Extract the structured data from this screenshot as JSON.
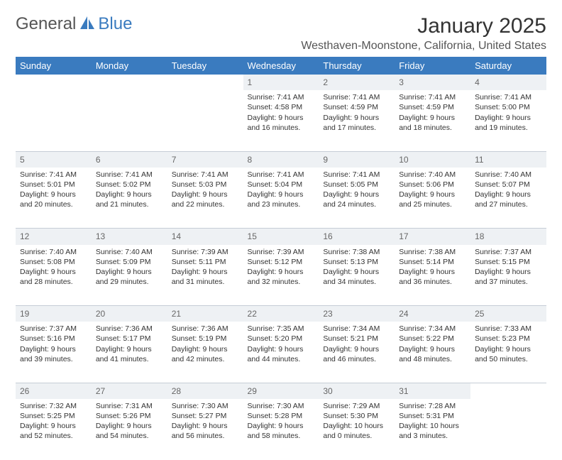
{
  "brand": {
    "part1": "General",
    "part2": "Blue",
    "icon_color": "#3a7bbf"
  },
  "title": "January 2025",
  "location": "Westhaven-Moonstone, California, United States",
  "colors": {
    "header_bg": "#3a7bbf",
    "header_text": "#ffffff",
    "daynum_bg": "#eef1f4",
    "daynum_text": "#666666",
    "body_text": "#333333",
    "row_divider": "#3a7bbf"
  },
  "day_headers": [
    "Sunday",
    "Monday",
    "Tuesday",
    "Wednesday",
    "Thursday",
    "Friday",
    "Saturday"
  ],
  "weeks": [
    [
      null,
      null,
      null,
      {
        "n": "1",
        "sr": "7:41 AM",
        "ss": "4:58 PM",
        "dl1": "9 hours",
        "dl2": "16 minutes."
      },
      {
        "n": "2",
        "sr": "7:41 AM",
        "ss": "4:59 PM",
        "dl1": "9 hours",
        "dl2": "17 minutes."
      },
      {
        "n": "3",
        "sr": "7:41 AM",
        "ss": "4:59 PM",
        "dl1": "9 hours",
        "dl2": "18 minutes."
      },
      {
        "n": "4",
        "sr": "7:41 AM",
        "ss": "5:00 PM",
        "dl1": "9 hours",
        "dl2": "19 minutes."
      }
    ],
    [
      {
        "n": "5",
        "sr": "7:41 AM",
        "ss": "5:01 PM",
        "dl1": "9 hours",
        "dl2": "20 minutes."
      },
      {
        "n": "6",
        "sr": "7:41 AM",
        "ss": "5:02 PM",
        "dl1": "9 hours",
        "dl2": "21 minutes."
      },
      {
        "n": "7",
        "sr": "7:41 AM",
        "ss": "5:03 PM",
        "dl1": "9 hours",
        "dl2": "22 minutes."
      },
      {
        "n": "8",
        "sr": "7:41 AM",
        "ss": "5:04 PM",
        "dl1": "9 hours",
        "dl2": "23 minutes."
      },
      {
        "n": "9",
        "sr": "7:41 AM",
        "ss": "5:05 PM",
        "dl1": "9 hours",
        "dl2": "24 minutes."
      },
      {
        "n": "10",
        "sr": "7:40 AM",
        "ss": "5:06 PM",
        "dl1": "9 hours",
        "dl2": "25 minutes."
      },
      {
        "n": "11",
        "sr": "7:40 AM",
        "ss": "5:07 PM",
        "dl1": "9 hours",
        "dl2": "27 minutes."
      }
    ],
    [
      {
        "n": "12",
        "sr": "7:40 AM",
        "ss": "5:08 PM",
        "dl1": "9 hours",
        "dl2": "28 minutes."
      },
      {
        "n": "13",
        "sr": "7:40 AM",
        "ss": "5:09 PM",
        "dl1": "9 hours",
        "dl2": "29 minutes."
      },
      {
        "n": "14",
        "sr": "7:39 AM",
        "ss": "5:11 PM",
        "dl1": "9 hours",
        "dl2": "31 minutes."
      },
      {
        "n": "15",
        "sr": "7:39 AM",
        "ss": "5:12 PM",
        "dl1": "9 hours",
        "dl2": "32 minutes."
      },
      {
        "n": "16",
        "sr": "7:38 AM",
        "ss": "5:13 PM",
        "dl1": "9 hours",
        "dl2": "34 minutes."
      },
      {
        "n": "17",
        "sr": "7:38 AM",
        "ss": "5:14 PM",
        "dl1": "9 hours",
        "dl2": "36 minutes."
      },
      {
        "n": "18",
        "sr": "7:37 AM",
        "ss": "5:15 PM",
        "dl1": "9 hours",
        "dl2": "37 minutes."
      }
    ],
    [
      {
        "n": "19",
        "sr": "7:37 AM",
        "ss": "5:16 PM",
        "dl1": "9 hours",
        "dl2": "39 minutes."
      },
      {
        "n": "20",
        "sr": "7:36 AM",
        "ss": "5:17 PM",
        "dl1": "9 hours",
        "dl2": "41 minutes."
      },
      {
        "n": "21",
        "sr": "7:36 AM",
        "ss": "5:19 PM",
        "dl1": "9 hours",
        "dl2": "42 minutes."
      },
      {
        "n": "22",
        "sr": "7:35 AM",
        "ss": "5:20 PM",
        "dl1": "9 hours",
        "dl2": "44 minutes."
      },
      {
        "n": "23",
        "sr": "7:34 AM",
        "ss": "5:21 PM",
        "dl1": "9 hours",
        "dl2": "46 minutes."
      },
      {
        "n": "24",
        "sr": "7:34 AM",
        "ss": "5:22 PM",
        "dl1": "9 hours",
        "dl2": "48 minutes."
      },
      {
        "n": "25",
        "sr": "7:33 AM",
        "ss": "5:23 PM",
        "dl1": "9 hours",
        "dl2": "50 minutes."
      }
    ],
    [
      {
        "n": "26",
        "sr": "7:32 AM",
        "ss": "5:25 PM",
        "dl1": "9 hours",
        "dl2": "52 minutes."
      },
      {
        "n": "27",
        "sr": "7:31 AM",
        "ss": "5:26 PM",
        "dl1": "9 hours",
        "dl2": "54 minutes."
      },
      {
        "n": "28",
        "sr": "7:30 AM",
        "ss": "5:27 PM",
        "dl1": "9 hours",
        "dl2": "56 minutes."
      },
      {
        "n": "29",
        "sr": "7:30 AM",
        "ss": "5:28 PM",
        "dl1": "9 hours",
        "dl2": "58 minutes."
      },
      {
        "n": "30",
        "sr": "7:29 AM",
        "ss": "5:30 PM",
        "dl1": "10 hours",
        "dl2": "0 minutes."
      },
      {
        "n": "31",
        "sr": "7:28 AM",
        "ss": "5:31 PM",
        "dl1": "10 hours",
        "dl2": "3 minutes."
      },
      null
    ]
  ],
  "labels": {
    "sunrise": "Sunrise:",
    "sunset": "Sunset:",
    "daylight": "Daylight:",
    "and": "and"
  }
}
